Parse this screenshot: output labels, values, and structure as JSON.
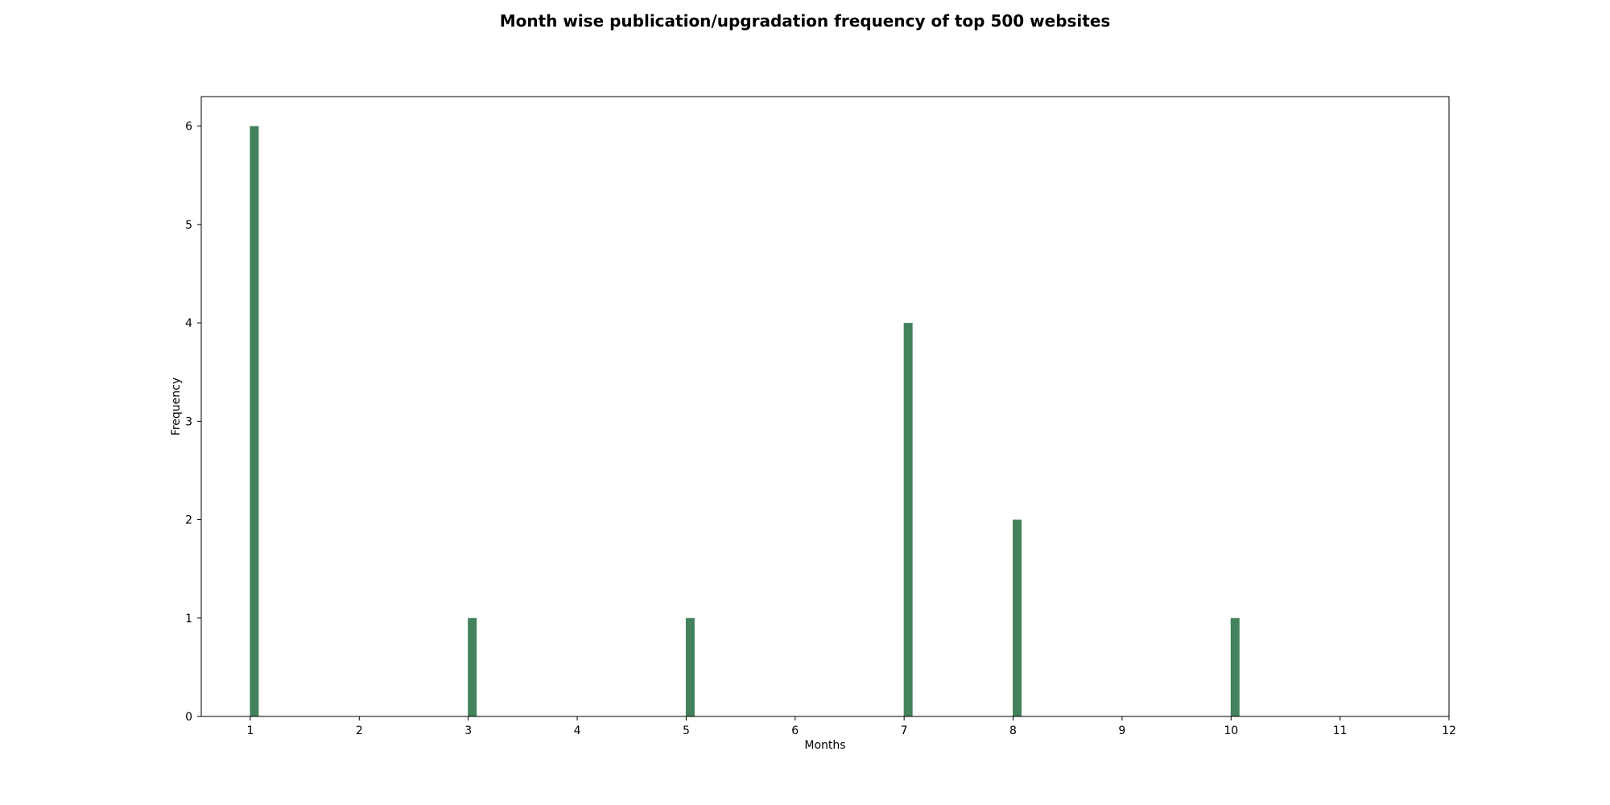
{
  "chart_data": {
    "type": "bar",
    "title": "Month wise publication/upgradation frequency of top 500 websites",
    "xlabel": "Months",
    "ylabel": "Frequency",
    "x": [
      1,
      3,
      5,
      7,
      8,
      10
    ],
    "values": [
      6,
      1,
      1,
      4,
      2,
      1
    ],
    "xlim": [
      0.55,
      12
    ],
    "ylim": [
      0,
      6.3
    ],
    "xticks": [
      1,
      2,
      3,
      4,
      5,
      6,
      7,
      8,
      9,
      10,
      11,
      12
    ],
    "yticks": [
      0,
      1,
      2,
      3,
      4,
      5,
      6
    ],
    "bar_color": "#43825c",
    "grid": false
  }
}
